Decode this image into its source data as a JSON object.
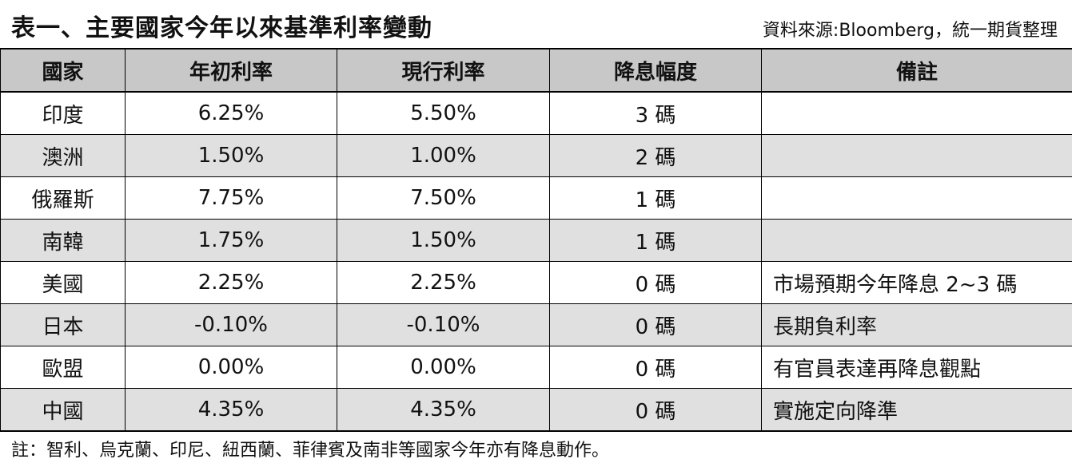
{
  "title": "表一、主要國家今年以來基準利率變動",
  "source": "資料來源:Bloomberg，統一期貨整理",
  "table": {
    "headers": [
      "國家",
      "年初利率",
      "現行利率",
      "降息幅度",
      "備註"
    ],
    "rows": [
      [
        "印度",
        "6.25%",
        "5.50%",
        "3 碼",
        ""
      ],
      [
        "澳洲",
        "1.50%",
        "1.00%",
        "2 碼",
        ""
      ],
      [
        "俄羅斯",
        "7.75%",
        "7.50%",
        "1 碼",
        ""
      ],
      [
        "南韓",
        "1.75%",
        "1.50%",
        "1 碼",
        ""
      ],
      [
        "美國",
        "2.25%",
        "2.25%",
        "0 碼",
        "市場預期今年降息 2~3 碼"
      ],
      [
        "日本",
        "-0.10%",
        "-0.10%",
        "0 碼",
        "長期負利率"
      ],
      [
        "歐盟",
        "0.00%",
        "0.00%",
        "0 碼",
        "有官員表達再降息觀點"
      ],
      [
        "中國",
        "4.35%",
        "4.35%",
        "0 碼",
        "實施定向降準"
      ]
    ]
  },
  "footnote": "註：智利、烏克蘭、印尼、紐西蘭、菲律賓及南非等國家今年亦有降息動作。"
}
